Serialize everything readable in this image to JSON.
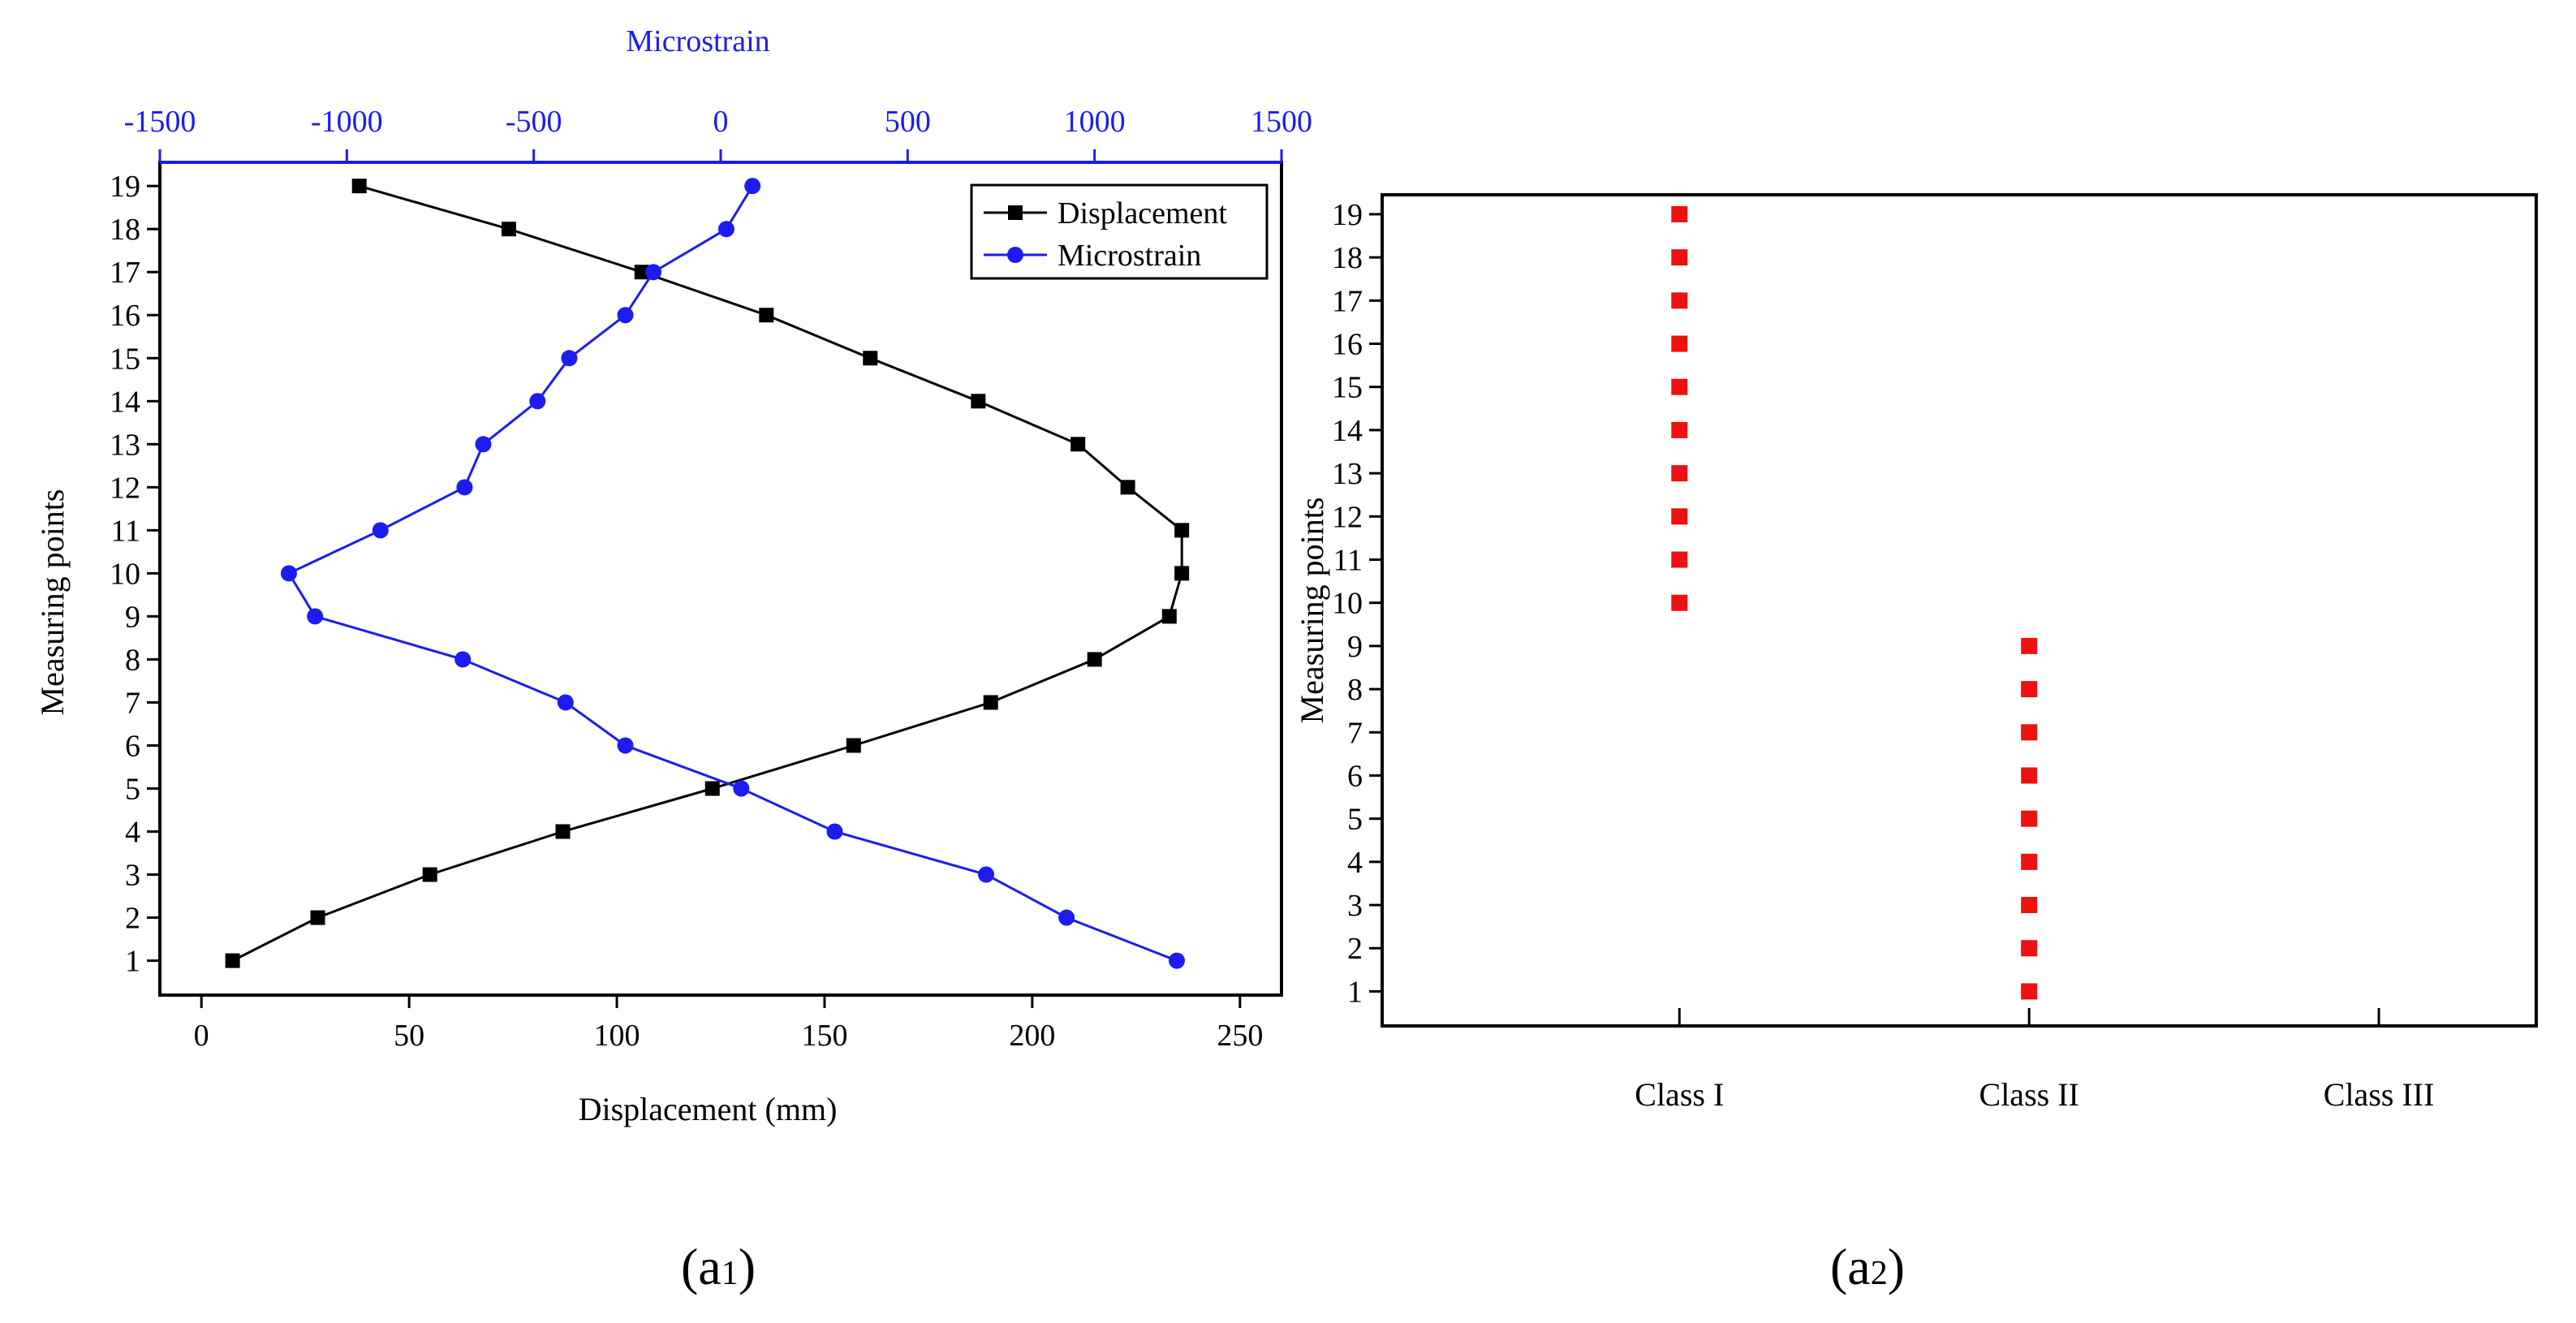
{
  "chart_data": [
    {
      "type": "line",
      "panel_label": "(a1)",
      "panel_letter": "(a",
      "panel_sub": "1",
      "panel_close": ")",
      "ylabel": "Measuring points",
      "xlabel": "Displacement (mm)",
      "x2label": "Microstrain",
      "y": [
        1,
        2,
        3,
        4,
        5,
        6,
        7,
        8,
        9,
        10,
        11,
        12,
        13,
        14,
        15,
        16,
        17,
        18,
        19
      ],
      "xlim": [
        -10,
        260
      ],
      "x2lim": [
        -1500,
        1500
      ],
      "ylim": [
        0.2,
        19.55
      ],
      "xticks": [
        0,
        50,
        100,
        150,
        200,
        250
      ],
      "x2ticks": [
        -1500,
        -1000,
        -500,
        0,
        500,
        1000,
        1500
      ],
      "yticks": [
        1,
        2,
        3,
        4,
        5,
        6,
        7,
        8,
        9,
        10,
        11,
        12,
        13,
        14,
        15,
        16,
        17,
        18,
        19
      ],
      "legend_position": "top-right",
      "series": [
        {
          "name": "Displacement",
          "axis": "bottom",
          "color": "#000000",
          "marker": "square",
          "values": [
            7.5,
            28,
            55,
            87,
            123,
            157,
            190,
            215,
            233,
            236,
            236,
            223,
            211,
            187,
            161,
            136,
            106,
            74,
            38
          ]
        },
        {
          "name": "Microstrain",
          "axis": "top",
          "color": "#1c1cf0",
          "marker": "circle",
          "values": [
            1220,
            925,
            710,
            305,
            55,
            -255,
            -415,
            -690,
            -1085,
            -1155,
            -910,
            -685,
            -635,
            -490,
            -405,
            -255,
            -180,
            15,
            85
          ]
        }
      ]
    },
    {
      "type": "scatter",
      "panel_label": "(a2)",
      "panel_letter": "(a",
      "panel_sub": "2",
      "panel_close": ")",
      "ylabel": "Measuring points",
      "categories": [
        "Class I",
        "Class II",
        "Class III"
      ],
      "xlim": [
        0.15,
        3.45
      ],
      "ylim": [
        0.2,
        19.45
      ],
      "yticks": [
        1,
        2,
        3,
        4,
        5,
        6,
        7,
        8,
        9,
        10,
        11,
        12,
        13,
        14,
        15,
        16,
        17,
        18,
        19
      ],
      "marker_color": "#ee1111",
      "points": [
        {
          "class_index": 1,
          "y": [
            10,
            11,
            12,
            13,
            14,
            15,
            16,
            17,
            18,
            19
          ]
        },
        {
          "class_index": 2,
          "y": [
            1,
            2,
            3,
            4,
            5,
            6,
            7,
            8,
            9
          ]
        }
      ]
    }
  ]
}
